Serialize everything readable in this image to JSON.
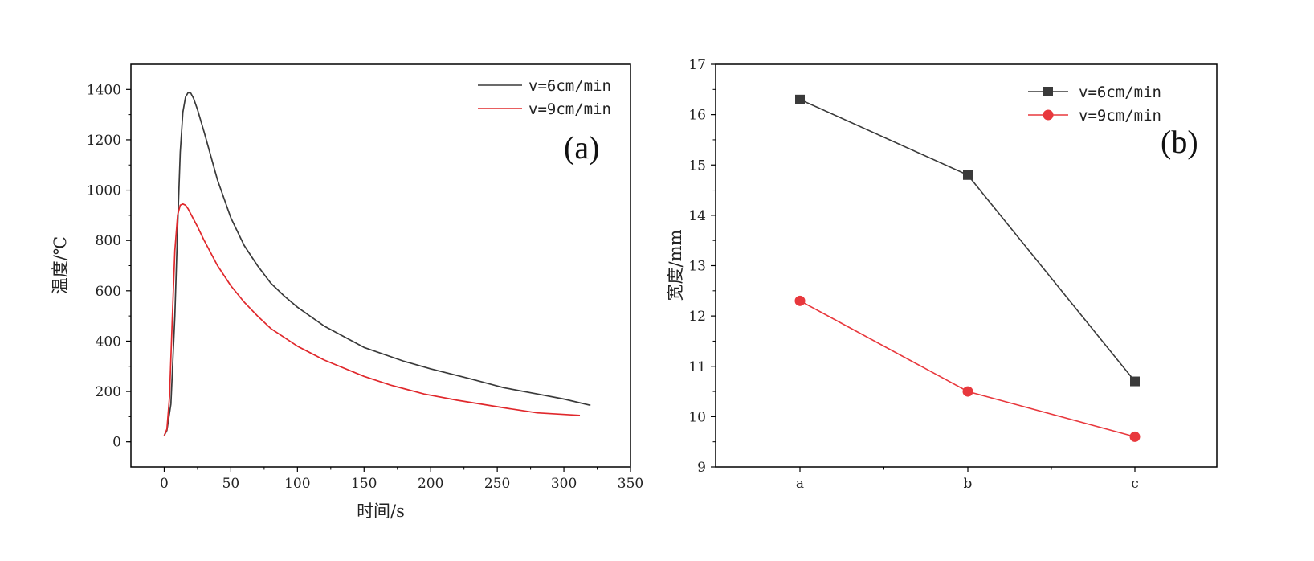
{
  "colors": {
    "series_black": "#3a3a3a",
    "series_red": "#e0282c",
    "marker_red": "#e8383d",
    "axis": "#000000"
  },
  "chart_data": [
    {
      "type": "line",
      "panel_label": "(a)",
      "xlabel": "时间/s",
      "ylabel": "温度/℃",
      "xlim": [
        -25,
        350
      ],
      "ylim": [
        -100,
        1500
      ],
      "xticks": [
        0,
        50,
        100,
        150,
        200,
        250,
        300,
        350
      ],
      "yticks": [
        0,
        200,
        400,
        600,
        800,
        1000,
        1200,
        1400
      ],
      "legend_position": "top-right",
      "grid": false,
      "series": [
        {
          "name": "v=6cm/min",
          "color": "#3a3a3a",
          "x": [
            0,
            2,
            5,
            8,
            10,
            12,
            14,
            16,
            18,
            20,
            22,
            25,
            30,
            40,
            50,
            60,
            70,
            80,
            90,
            100,
            120,
            150,
            180,
            200,
            230,
            255,
            280,
            300,
            320
          ],
          "y": [
            25,
            45,
            150,
            500,
            850,
            1150,
            1310,
            1370,
            1388,
            1385,
            1365,
            1320,
            1230,
            1040,
            890,
            780,
            700,
            630,
            580,
            535,
            460,
            375,
            320,
            290,
            250,
            215,
            190,
            170,
            145
          ]
        },
        {
          "name": "v=9cm/min",
          "color": "#e0282c",
          "x": [
            0,
            2,
            4,
            6,
            8,
            10,
            12,
            14,
            16,
            18,
            20,
            25,
            30,
            40,
            50,
            60,
            70,
            80,
            90,
            100,
            120,
            150,
            170,
            195,
            220,
            255,
            280,
            312
          ],
          "y": [
            25,
            50,
            180,
            480,
            760,
            900,
            940,
            945,
            940,
            925,
            905,
            855,
            800,
            700,
            620,
            555,
            500,
            450,
            415,
            380,
            325,
            260,
            225,
            190,
            165,
            135,
            115,
            105
          ]
        }
      ]
    },
    {
      "type": "line",
      "panel_label": "(b)",
      "xlabel": "",
      "ylabel": "宽度/mm",
      "categories": [
        "a",
        "b",
        "c"
      ],
      "ylim": [
        9,
        17
      ],
      "yticks": [
        9,
        10,
        11,
        12,
        13,
        14,
        15,
        16,
        17
      ],
      "legend_position": "top-right",
      "grid": false,
      "series": [
        {
          "name": "v=6cm/min",
          "color": "#3a3a3a",
          "marker": "square",
          "values": [
            16.3,
            14.8,
            10.7
          ]
        },
        {
          "name": "v=9cm/min",
          "color": "#e8383d",
          "marker": "circle",
          "values": [
            12.3,
            10.5,
            9.6
          ]
        }
      ]
    }
  ]
}
